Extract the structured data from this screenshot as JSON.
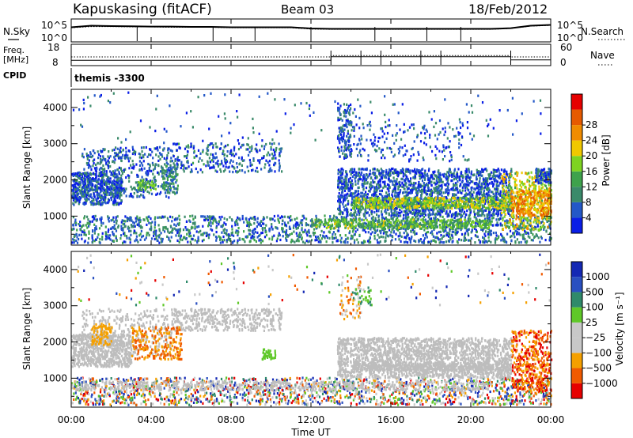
{
  "header": {
    "station": "Kapuskasing (fitACF)",
    "beam": "Beam 03",
    "date": "18/Feb/2012"
  },
  "noise_panel": {
    "left_label": "N.Sky",
    "right_label": "N.Search",
    "tick_top": "10^5",
    "tick_bottom": "10^0"
  },
  "freq_panel": {
    "left_label_line1": "Freq.",
    "left_label_line2": "[MHz]",
    "right_label": "Nave",
    "left_ticks": [
      "18",
      "8"
    ],
    "right_ticks": [
      "60",
      "0"
    ]
  },
  "cpid_panel": {
    "label": "CPID",
    "value": "themis -3300"
  },
  "x_axis": {
    "label": "Time UT",
    "ticks": [
      "00:00",
      "04:00",
      "08:00",
      "12:00",
      "16:00",
      "20:00",
      "00:00"
    ]
  },
  "colors": {
    "power": [
      "#0a1ee6",
      "#2358c8",
      "#3a8a6a",
      "#3ea24c",
      "#7ed321",
      "#f0c800",
      "#f08c00",
      "#e65a00",
      "#e60000"
    ],
    "velocity": [
      "#e60000",
      "#f05a00",
      "#f5a000",
      "#c8c8c8",
      "#c8c8c8",
      "#5fc828",
      "#2f8a6a",
      "#2a50c0",
      "#1428b4"
    ],
    "ground": "#bdbdbd"
  },
  "chart_data": [
    {
      "type": "line",
      "panel": "noise",
      "xlabel": "",
      "ylabel": "",
      "x": [
        0,
        1,
        2,
        3,
        4,
        5,
        6,
        7,
        8,
        9,
        10,
        11,
        12,
        13,
        14,
        15,
        16,
        17,
        18,
        19,
        20,
        21,
        22,
        23,
        24
      ],
      "xlim": [
        0,
        24
      ],
      "yscale": "log",
      "series": [
        {
          "name": "N.Sky",
          "values": [
            2000,
            5000,
            4000,
            3500,
            3000,
            3000,
            2500,
            2500,
            2000,
            2000,
            2000,
            2000,
            1000,
            800,
            800,
            800,
            800,
            800,
            800,
            800,
            800,
            800,
            1200,
            5000,
            8000
          ]
        },
        {
          "name": "N.Search",
          "values": [
            1500,
            3000,
            3000,
            2500,
            2500,
            2000,
            2000,
            2000,
            1500,
            1500,
            1500,
            1500,
            700,
            600,
            600,
            600,
            600,
            600,
            600,
            600,
            600,
            600,
            1000,
            4000,
            6000
          ]
        }
      ]
    },
    {
      "type": "line",
      "panel": "frequency",
      "xlabel": "",
      "ylabel": "Freq. [MHz]",
      "xlim": [
        0,
        24
      ],
      "ylim_left": [
        8,
        18
      ],
      "ylim_right": [
        0,
        60
      ],
      "series": [
        {
          "name": "Freq.",
          "x": [
            0,
            13,
            13,
            22,
            22,
            24
          ],
          "values": [
            10.3,
            10.3,
            12.1,
            12.1,
            10.5,
            10.5
          ]
        },
        {
          "name": "Nave",
          "x": [
            0,
            13,
            13,
            22,
            22,
            24
          ],
          "values": [
            24,
            24,
            28,
            28,
            24,
            24
          ]
        }
      ]
    },
    {
      "type": "heatmap",
      "panel": "power",
      "xlabel": "",
      "ylabel": "Slant Range [km]",
      "xlim": [
        0,
        24
      ],
      "ylim": [
        200,
        4500
      ],
      "yticks": [
        1000,
        2000,
        3000,
        4000
      ],
      "colorbar": {
        "label": "Power [dB]",
        "ticks": [
          4,
          8,
          12,
          16,
          20,
          24,
          28
        ],
        "range": [
          0,
          30
        ]
      }
    },
    {
      "type": "heatmap",
      "panel": "velocity",
      "xlabel": "Time UT",
      "ylabel": "Slant Range [km]",
      "xlim": [
        0,
        24
      ],
      "ylim": [
        200,
        4500
      ],
      "yticks": [
        1000,
        2000,
        3000,
        4000
      ],
      "colorbar": {
        "label": "Velocity [m s⁻¹]",
        "ticks": [
          "1000",
          "500",
          "100",
          "25",
          "−25",
          "−100",
          "−500",
          "−1000"
        ]
      }
    }
  ]
}
